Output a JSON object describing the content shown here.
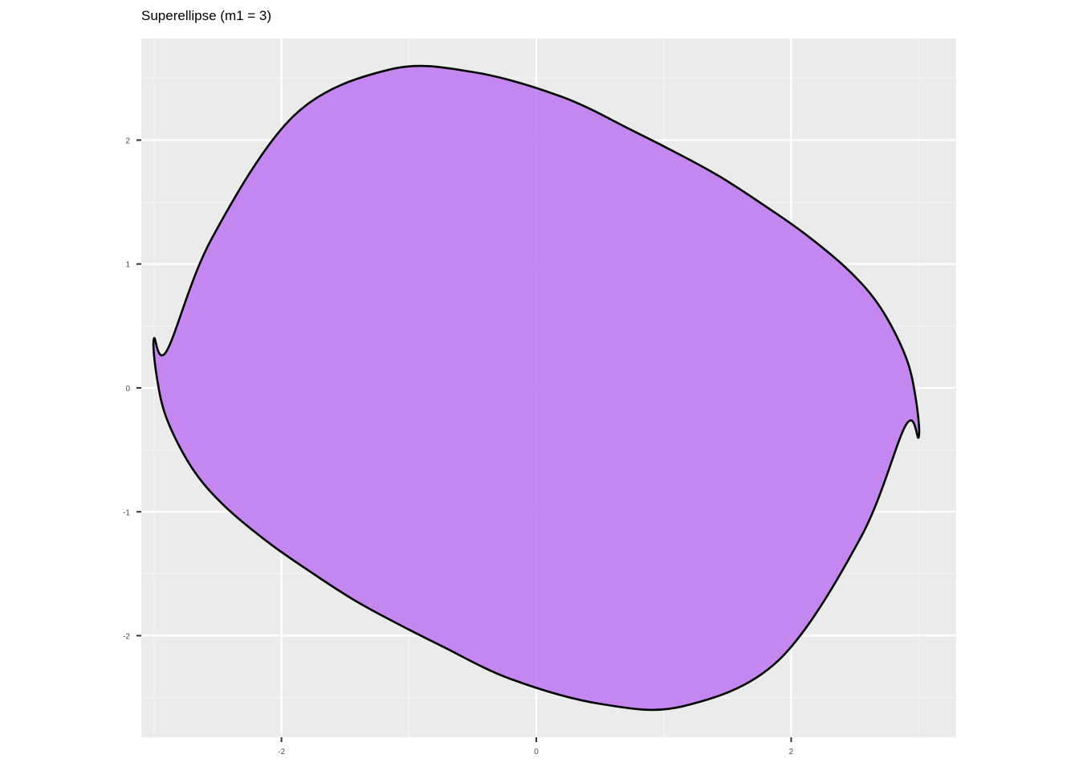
{
  "chart_data": {
    "type": "area",
    "title": "Superellipse (m1 = 3)",
    "xlabel": "",
    "ylabel": "",
    "xlim": [
      -3.1,
      3.295
    ],
    "ylim": [
      -2.82,
      2.82
    ],
    "x_ticks": [
      -2,
      0,
      2
    ],
    "x_tick_labels": [
      "-2",
      "0",
      "2"
    ],
    "y_ticks": [
      -2,
      -1,
      0,
      1,
      2
    ],
    "y_tick_labels": [
      "-2",
      "-1",
      "0",
      "1",
      "2"
    ],
    "x_minor_ticks": [
      -3,
      -1,
      1,
      3
    ],
    "y_minor_ticks": [
      -2.5,
      -1.5,
      -0.5,
      0.5,
      1.5,
      2.5
    ],
    "grid": true,
    "legend": "none",
    "series": [
      {
        "x": [
          -3.0,
          -2.98,
          -2.9,
          -2.7,
          -2.45,
          -2.1,
          -1.75,
          -1.45,
          -1.17,
          -0.75,
          -0.2,
          0.5,
          1.15,
          1.9,
          2.55,
          2.9,
          3.0,
          2.98,
          2.9,
          2.7,
          2.45,
          2.1,
          1.75,
          1.45,
          1.17,
          0.75,
          0.2,
          -0.5,
          -1.15,
          -1.9,
          -2.55,
          -2.9,
          -3.0
        ],
        "y": [
          0.4,
          0.1,
          -0.25,
          -0.65,
          -0.95,
          -1.25,
          -1.5,
          -1.7,
          -1.86,
          -2.08,
          -2.35,
          -2.55,
          -2.57,
          -2.2,
          -1.2,
          -0.3,
          -0.4,
          -0.1,
          0.25,
          0.65,
          0.95,
          1.25,
          1.5,
          1.7,
          1.86,
          2.08,
          2.35,
          2.55,
          2.57,
          2.2,
          1.2,
          0.3,
          0.4
        ]
      }
    ],
    "colors": {
      "panel_background": "#ebebeb",
      "grid_major": "#ffffff",
      "grid_minor": "#f5f5f5",
      "fill": "#c07cf0",
      "fill_opacity": 0.9,
      "stroke": "#000000",
      "tick": "#333333",
      "tick_label": "#4d4d4d"
    }
  }
}
